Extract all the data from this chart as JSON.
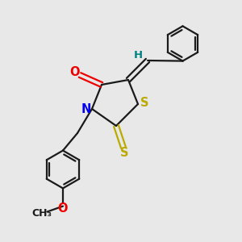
{
  "bg_color": "#e8e8e8",
  "bond_color": "#1a1a1a",
  "N_color": "#0000ee",
  "O_color": "#ee0000",
  "S_color": "#bbaa00",
  "H_color": "#008080",
  "line_width": 1.6,
  "font_size": 9.5,
  "figsize": [
    3.0,
    3.0
  ],
  "dpi": 100,
  "xlim": [
    0,
    10
  ],
  "ylim": [
    0,
    10
  ]
}
